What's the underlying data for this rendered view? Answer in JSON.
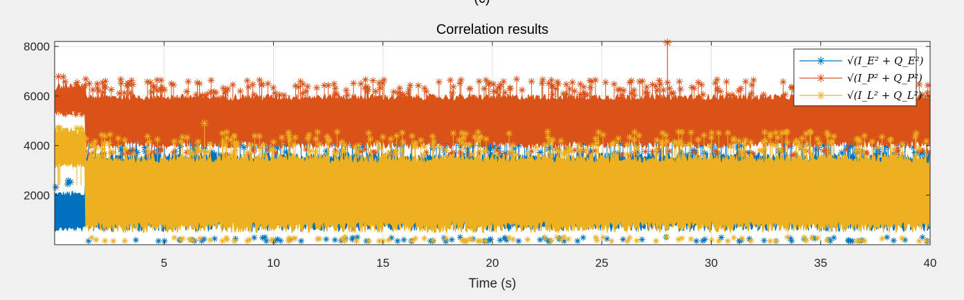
{
  "header_fragment": "(c)",
  "chart_data": {
    "type": "scatter",
    "title": "Correlation results",
    "xlabel": "Time (s)",
    "ylabel": "",
    "xlim": [
      0,
      40
    ],
    "ylim": [
      0,
      8200
    ],
    "xticks": [
      5,
      10,
      15,
      20,
      25,
      30,
      35,
      40
    ],
    "yticks": [
      2000,
      4000,
      6000,
      8000
    ],
    "grid": true,
    "legend_position": "top-right",
    "marker": "asterisk with stems",
    "series": [
      {
        "name": "√(I_E² + Q_E²)",
        "color": "#0072BD",
        "base": 2450,
        "spread": 1600,
        "min": 60,
        "peak": 4500,
        "initial_segment": {
          "x_end": 1.4,
          "value": 1150
        }
      },
      {
        "name": "√(I_P² + Q_P²)",
        "color": "#D95319",
        "base": 5200,
        "spread": 1100,
        "min": 3600,
        "peak": 8150,
        "peak_at_x": 28.0,
        "initial_segment": {
          "x_end": 1.4,
          "value": 5700
        }
      },
      {
        "name": "√(I_L² + Q_L²)",
        "color": "#EDB120",
        "base": 2400,
        "spread": 1600,
        "min": 60,
        "peak": 4900,
        "initial_segment": {
          "x_end": 1.4,
          "value": 3700
        }
      }
    ]
  }
}
